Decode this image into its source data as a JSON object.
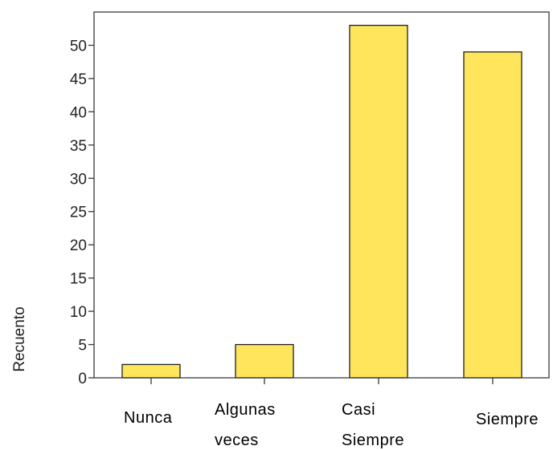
{
  "chart_data": {
    "type": "bar",
    "ylabel": "Recuento",
    "xlabel": "",
    "categories": [
      [
        "Nunca"
      ],
      [
        "Algunas",
        "veces"
      ],
      [
        "Casi",
        "Siempre"
      ],
      [
        "Siempre"
      ]
    ],
    "values": [
      2,
      5,
      53,
      49
    ],
    "ylim": [
      0,
      55
    ],
    "yticks": [
      "0",
      "5",
      "10",
      "15",
      "20",
      "25",
      "30",
      "35",
      "40",
      "45",
      "50"
    ],
    "bar_color": "#ffe55c",
    "bar_edge_color": "#1f1f1f",
    "grid": false,
    "legend": "none"
  }
}
